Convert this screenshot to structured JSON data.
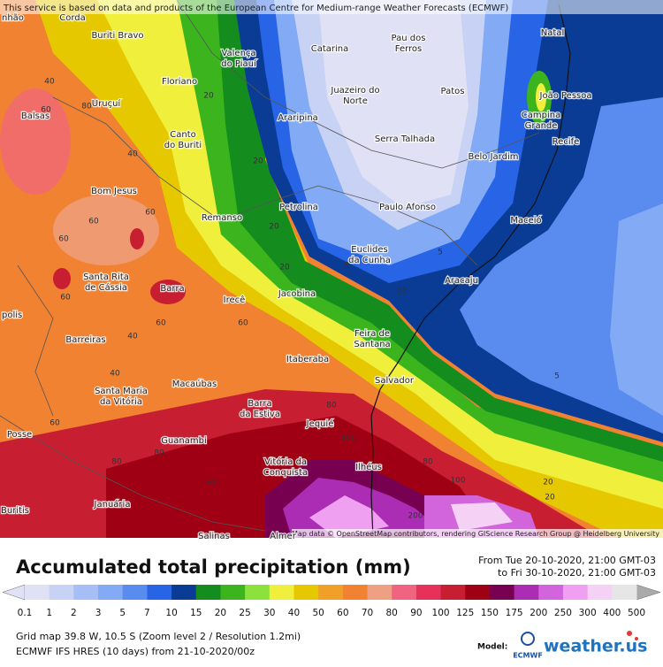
{
  "header": {
    "notice": "This service is based on data and products of the European Centre for Medium-range Weather Forecasts (ECMWF)"
  },
  "map": {
    "attribution": "Map data © OpenStreetMap contributors, rendering GIScience Research Group @ Heidelberg University",
    "cities": [
      [
        "nhão"
      ],
      [
        "Corda"
      ],
      [
        "Buriti Bravo"
      ],
      [
        "Valença",
        "do Piauí"
      ],
      [
        "Catarina"
      ],
      [
        "Pau dos",
        "Ferros"
      ],
      [
        "Natal"
      ],
      [
        "Floriano"
      ],
      [
        "Uruçuí"
      ],
      [
        "Juazeiro do",
        "Norte"
      ],
      [
        "Patos"
      ],
      [
        "João Pessoa"
      ],
      [
        "Campina",
        "Grande"
      ],
      [
        "Balsas"
      ],
      [
        "Araripina"
      ],
      [
        "Recife"
      ],
      [
        "Canto",
        "do Buriti"
      ],
      [
        "Serra Talhada"
      ],
      [
        "Belo Jardim"
      ],
      [
        "Bom Jesus"
      ],
      [
        "Petrolina"
      ],
      [
        "Paulo Afonso"
      ],
      [
        "Maceió"
      ],
      [
        "Remanso"
      ],
      [
        "Euclides",
        "da Cunha"
      ],
      [
        "Aracaju"
      ],
      [
        "Santa Rita",
        "de Cássia"
      ],
      [
        "Barra"
      ],
      [
        "Irecê"
      ],
      [
        "Jacobina"
      ],
      [
        "Feira de",
        "Santana"
      ],
      [
        "Barreiras"
      ],
      [
        "Itaberaba"
      ],
      [
        "Macaúbas"
      ],
      [
        "Salvador"
      ],
      [
        "Santa Maria",
        "da Vitória"
      ],
      [
        "Barra",
        "da Estiva"
      ],
      [
        "Jequié"
      ],
      [
        "Posse"
      ],
      [
        "Guanambi"
      ],
      [
        "Vitória da",
        "Conquista"
      ],
      [
        "Ilhéus"
      ],
      [
        "Januária"
      ],
      [
        "Buritis"
      ],
      [
        "Salinas"
      ],
      [
        "Almer"
      ],
      [
        "polis"
      ]
    ],
    "contour_labels": [
      40,
      60,
      20,
      40,
      60,
      60,
      60,
      20,
      20,
      5,
      20,
      20,
      5,
      5,
      60,
      80,
      60,
      40,
      60,
      40,
      60,
      80,
      80,
      100,
      80,
      100,
      20,
      20,
      200,
      80,
      60
    ]
  },
  "legend": {
    "title": "Accumulated total precipitation (mm)",
    "period_from": "From Tue 20-10-2020, 21:00 GMT-03",
    "period_to": "to Fri 30-10-2020, 21:00 GMT-03",
    "labels": [
      0.1,
      1,
      2,
      3,
      5,
      7,
      10,
      15,
      20,
      25,
      30,
      40,
      50,
      60,
      70,
      80,
      90,
      100,
      125,
      150,
      175,
      200,
      250,
      300,
      400,
      500
    ],
    "colors": [
      "#e1e1f5",
      "#c8d2f5",
      "#a5bef5",
      "#82aaf5",
      "#5a8cf0",
      "#2864e6",
      "#0a3c96",
      "#148c1e",
      "#3cb41e",
      "#8ce13c",
      "#f0f03c",
      "#e6c800",
      "#f0a028",
      "#f08232",
      "#f0a082",
      "#f06482",
      "#e6325a",
      "#c81e32",
      "#a00014",
      "#780050",
      "#aa2db4",
      "#d264dc",
      "#f0a0f0",
      "#f5d2f5",
      "#e6e6e6"
    ]
  },
  "footer": {
    "grid": "Grid map 39.8 W, 10.5 S (Zoom level 2 / Resolution 1.2mi)",
    "model_run": "ECMWF IFS HRES (10 days) from 21-10-2020/00z",
    "model_label": "Model:",
    "model_name": "ECMWF",
    "brand": "weather.us"
  }
}
